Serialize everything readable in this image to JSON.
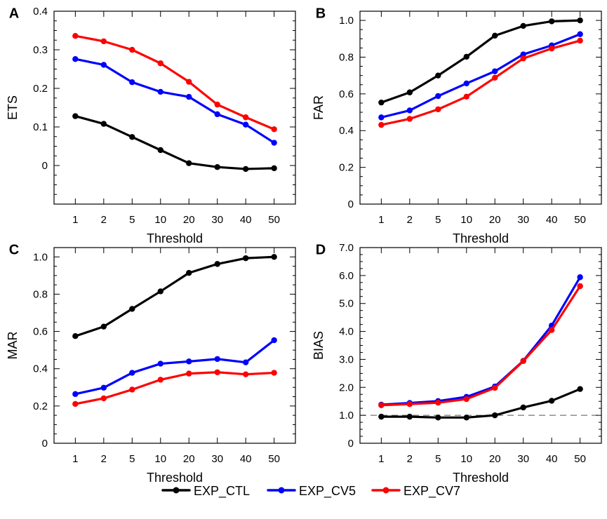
{
  "figure": {
    "legend": [
      {
        "label": "EXP_CTL",
        "color": "#000000"
      },
      {
        "label": "EXP_CV5",
        "color": "#0000ff"
      },
      {
        "label": "EXP_CV7",
        "color": "#ff0000"
      }
    ]
  },
  "chart_data": [
    {
      "panel": "A",
      "type": "line",
      "categories": [
        "1",
        "2",
        "5",
        "10",
        "20",
        "30",
        "40",
        "50"
      ],
      "xlabel": "Threshold",
      "ylabel": "ETS",
      "ylim": [
        -0.1,
        0.4
      ],
      "yticks": [
        0,
        0.1,
        0.2,
        0.3,
        0.4
      ],
      "ytick_labels": [
        "0",
        "0.1",
        "0.2",
        "0.3",
        "0.4"
      ],
      "series": [
        {
          "name": "EXP_CTL",
          "color": "#000000",
          "values": [
            0.128,
            0.108,
            0.074,
            0.04,
            0.006,
            -0.004,
            -0.009,
            -0.007
          ]
        },
        {
          "name": "EXP_CV5",
          "color": "#0000ff",
          "values": [
            0.276,
            0.261,
            0.216,
            0.191,
            0.178,
            0.133,
            0.106,
            0.059
          ]
        },
        {
          "name": "EXP_CV7",
          "color": "#ff0000",
          "values": [
            0.336,
            0.322,
            0.3,
            0.265,
            0.217,
            0.158,
            0.125,
            0.094
          ]
        }
      ]
    },
    {
      "panel": "B",
      "type": "line",
      "categories": [
        "1",
        "2",
        "5",
        "10",
        "20",
        "30",
        "40",
        "50"
      ],
      "xlabel": "Threshold",
      "ylabel": "FAR",
      "ylim": [
        0,
        1.05
      ],
      "yticks": [
        0,
        0.2,
        0.4,
        0.6,
        0.8,
        1.0
      ],
      "ytick_labels": [
        "0",
        "0.2",
        "0.4",
        "0.6",
        "0.8",
        "1.0"
      ],
      "series": [
        {
          "name": "EXP_CTL",
          "color": "#000000",
          "values": [
            0.553,
            0.608,
            0.7,
            0.802,
            0.917,
            0.97,
            0.995,
            1.0
          ]
        },
        {
          "name": "EXP_CV5",
          "color": "#0000ff",
          "values": [
            0.472,
            0.51,
            0.588,
            0.657,
            0.723,
            0.815,
            0.864,
            0.925
          ]
        },
        {
          "name": "EXP_CV7",
          "color": "#ff0000",
          "values": [
            0.431,
            0.464,
            0.516,
            0.585,
            0.688,
            0.793,
            0.847,
            0.89
          ]
        }
      ]
    },
    {
      "panel": "C",
      "type": "line",
      "categories": [
        "1",
        "2",
        "5",
        "10",
        "20",
        "30",
        "40",
        "50"
      ],
      "xlabel": "Threshold",
      "ylabel": "MAR",
      "ylim": [
        0,
        1.05
      ],
      "yticks": [
        0,
        0.2,
        0.4,
        0.6,
        0.8,
        1.0
      ],
      "ytick_labels": [
        "0",
        "0.2",
        "0.4",
        "0.6",
        "0.8",
        "1.0"
      ],
      "series": [
        {
          "name": "EXP_CTL",
          "color": "#000000",
          "values": [
            0.575,
            0.626,
            0.721,
            0.815,
            0.914,
            0.962,
            0.993,
            1.0
          ]
        },
        {
          "name": "EXP_CV5",
          "color": "#0000ff",
          "values": [
            0.264,
            0.298,
            0.378,
            0.427,
            0.439,
            0.452,
            0.434,
            0.553
          ]
        },
        {
          "name": "EXP_CV7",
          "color": "#ff0000",
          "values": [
            0.211,
            0.241,
            0.288,
            0.341,
            0.374,
            0.381,
            0.37,
            0.378
          ]
        }
      ]
    },
    {
      "panel": "D",
      "type": "line",
      "categories": [
        "1",
        "2",
        "5",
        "10",
        "20",
        "30",
        "40",
        "50"
      ],
      "xlabel": "Threshold",
      "ylabel": "BIAS",
      "ylim": [
        0,
        7.0
      ],
      "yticks": [
        0,
        1,
        2,
        3,
        4,
        5,
        6,
        7
      ],
      "ytick_labels": [
        "0",
        "1.0",
        "2.0",
        "3.0",
        "4.0",
        "5.0",
        "6.0",
        "7.0"
      ],
      "reference_line": 1.0,
      "series": [
        {
          "name": "EXP_CTL",
          "color": "#000000",
          "values": [
            0.95,
            0.95,
            0.92,
            0.92,
            1.0,
            1.28,
            1.52,
            1.94
          ]
        },
        {
          "name": "EXP_CV5",
          "color": "#0000ff",
          "values": [
            1.38,
            1.44,
            1.51,
            1.66,
            2.03,
            2.95,
            4.21,
            5.94
          ]
        },
        {
          "name": "EXP_CV7",
          "color": "#ff0000",
          "values": [
            1.36,
            1.4,
            1.45,
            1.58,
            1.98,
            2.94,
            4.05,
            5.62
          ]
        }
      ]
    }
  ]
}
